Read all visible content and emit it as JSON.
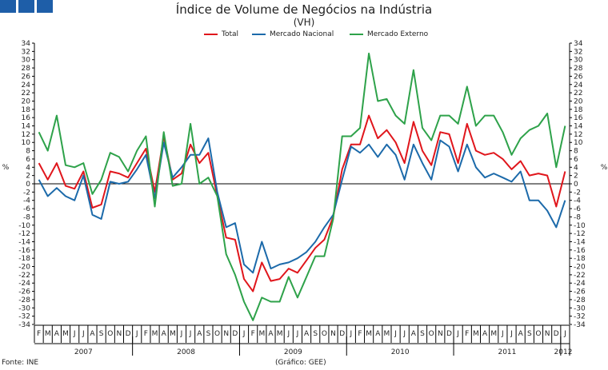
{
  "header": {
    "title": "Índice de Volume de Negócios na Indústria",
    "subtitle": "(VH)"
  },
  "footer": {
    "source": "Fonte: INE",
    "credit": "(Gráfico: GEE)"
  },
  "colors": {
    "total": "#e0161c",
    "nacional": "#1c6aaa",
    "externo": "#2ea24a",
    "logo": "#1e5ea8"
  },
  "chart_data": {
    "type": "line",
    "title": "Índice de Volume de Negócios na Indústria",
    "subtitle": "(VH)",
    "ylabel": "%",
    "ylim": [
      -34,
      34
    ],
    "yticks": [
      34,
      32,
      30,
      28,
      26,
      24,
      22,
      20,
      18,
      16,
      14,
      12,
      10,
      8,
      6,
      4,
      2,
      0,
      -2,
      -4,
      -6,
      -8,
      -10,
      -12,
      -14,
      -16,
      -18,
      -20,
      -22,
      -24,
      -26,
      -28,
      -30,
      -32,
      -34
    ],
    "grid": false,
    "legend_position": "top",
    "month_labels": [
      "F",
      "M",
      "A",
      "M",
      "J",
      "J",
      "A",
      "S",
      "O",
      "N",
      "D",
      "J",
      "F",
      "M",
      "A",
      "M",
      "J",
      "J",
      "A",
      "S",
      "O",
      "N",
      "D",
      "J",
      "F",
      "M",
      "A",
      "M",
      "J",
      "J",
      "A",
      "S",
      "O",
      "N",
      "D",
      "J",
      "F",
      "M",
      "A",
      "M",
      "J",
      "J",
      "A",
      "S",
      "O",
      "N",
      "D",
      "J",
      "F",
      "M",
      "A",
      "M",
      "J",
      "J",
      "A",
      "S",
      "O",
      "N",
      "D",
      "J"
    ],
    "years": [
      {
        "label": "2007",
        "start": 0,
        "end": 10
      },
      {
        "label": "2008",
        "start": 11,
        "end": 22
      },
      {
        "label": "2009",
        "start": 23,
        "end": 34
      },
      {
        "label": "2010",
        "start": 35,
        "end": 46
      },
      {
        "label": "2011",
        "start": 47,
        "end": 58
      },
      {
        "label": "2012",
        "start": 59,
        "end": 59
      }
    ],
    "x": [
      "2007-02",
      "2007-03",
      "2007-04",
      "2007-05",
      "2007-06",
      "2007-07",
      "2007-08",
      "2007-09",
      "2007-10",
      "2007-11",
      "2007-12",
      "2008-01",
      "2008-02",
      "2008-03",
      "2008-04",
      "2008-05",
      "2008-06",
      "2008-07",
      "2008-08",
      "2008-09",
      "2008-10",
      "2008-11",
      "2008-12",
      "2009-01",
      "2009-02",
      "2009-03",
      "2009-04",
      "2009-05",
      "2009-06",
      "2009-07",
      "2009-08",
      "2009-09",
      "2009-10",
      "2009-11",
      "2009-12",
      "2010-01",
      "2010-02",
      "2010-03",
      "2010-04",
      "2010-05",
      "2010-06",
      "2010-07",
      "2010-08",
      "2010-09",
      "2010-10",
      "2010-11",
      "2010-12",
      "2011-01",
      "2011-02",
      "2011-03",
      "2011-04",
      "2011-05",
      "2011-06",
      "2011-07",
      "2011-08",
      "2011-09",
      "2011-10",
      "2011-11",
      "2011-12",
      "2012-01"
    ],
    "series": [
      {
        "name": "Total",
        "color_key": "total",
        "values": [
          5,
          1,
          5,
          -0.5,
          -1.2,
          3,
          -5.8,
          -5,
          3,
          2.5,
          1.5,
          5,
          8.5,
          -2,
          11.5,
          1,
          2.5,
          9.5,
          5,
          7.5,
          -3,
          -13,
          -13.5,
          -23,
          -26,
          -19,
          -23.5,
          -23,
          -20.5,
          -21.5,
          -18.5,
          -15.5,
          -13.5,
          -8,
          3.5,
          9.5,
          9.5,
          16.5,
          11,
          13,
          10,
          5,
          15,
          8,
          4.5,
          12.5,
          12,
          5,
          14.5,
          8,
          7,
          7.5,
          6,
          3.5,
          5.5,
          2,
          2.5,
          2,
          -5.5,
          3
        ]
      },
      {
        "name": "Mercado Nacional",
        "color_key": "nacional",
        "values": [
          1,
          -3,
          -1,
          -3,
          -4,
          2,
          -7.5,
          -8.5,
          0.5,
          0,
          0.5,
          3.5,
          7,
          -3.5,
          10,
          1.5,
          4,
          7,
          7,
          11,
          -2,
          -10.5,
          -9.5,
          -19.5,
          -21.5,
          -14,
          -20.5,
          -19.5,
          -19,
          -18,
          -16.5,
          -14,
          -10.5,
          -7.5,
          1,
          9,
          7.5,
          9.5,
          6.5,
          9.5,
          7,
          1,
          9.5,
          5,
          1,
          10.5,
          9,
          3,
          9.5,
          4,
          1.5,
          2.5,
          1.5,
          0.5,
          3,
          -4,
          -4,
          -6.5,
          -10.5,
          -4
        ]
      },
      {
        "name": "Mercado Externo",
        "color_key": "externo",
        "values": [
          12.5,
          8,
          16.5,
          4.5,
          4,
          5,
          -2.5,
          1,
          7.5,
          6.5,
          3,
          8,
          11.5,
          -5.5,
          12.5,
          -0.5,
          0,
          14.5,
          0,
          1.5,
          -3,
          -17,
          -22,
          -28.5,
          -33,
          -27.5,
          -28.5,
          -28.5,
          -22.5,
          -27.5,
          -22.5,
          -17.5,
          -17.5,
          -8.5,
          11.5,
          11.5,
          13.5,
          31.5,
          20,
          20.5,
          16.5,
          14.5,
          27.5,
          13.5,
          10.5,
          16.5,
          16.5,
          14.5,
          23.5,
          14,
          16.5,
          16.5,
          12.5,
          7,
          11,
          13,
          14,
          17,
          4,
          14
        ]
      }
    ]
  }
}
